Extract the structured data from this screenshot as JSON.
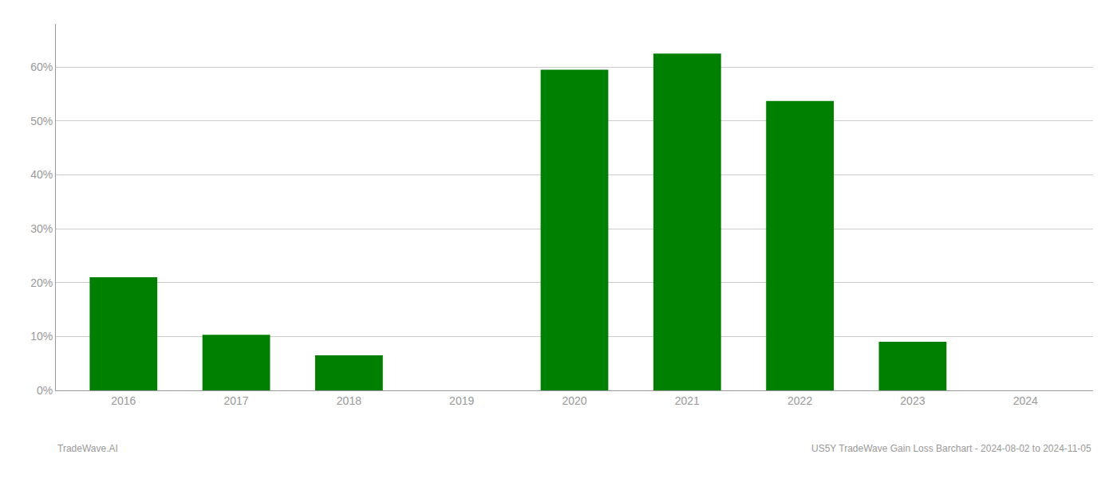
{
  "chart_data": {
    "type": "bar",
    "categories": [
      "2016",
      "2017",
      "2018",
      "2019",
      "2020",
      "2021",
      "2022",
      "2023",
      "2024"
    ],
    "values": [
      21.0,
      10.3,
      6.5,
      0.0,
      59.5,
      62.5,
      53.7,
      9.0,
      0.0
    ],
    "color": "#008000",
    "ylim": [
      0,
      68
    ],
    "yticks": [
      {
        "value": 0,
        "label": "0%"
      },
      {
        "value": 10,
        "label": "10%"
      },
      {
        "value": 20,
        "label": "20%"
      },
      {
        "value": 30,
        "label": "30%"
      },
      {
        "value": 40,
        "label": "40%"
      },
      {
        "value": 50,
        "label": "50%"
      },
      {
        "value": 60,
        "label": "60%"
      }
    ],
    "grid": true,
    "annotations": [
      "TradeWave.AI",
      "US5Y TradeWave Gain Loss Barchart - 2024-08-02 to 2024-11-05"
    ]
  }
}
